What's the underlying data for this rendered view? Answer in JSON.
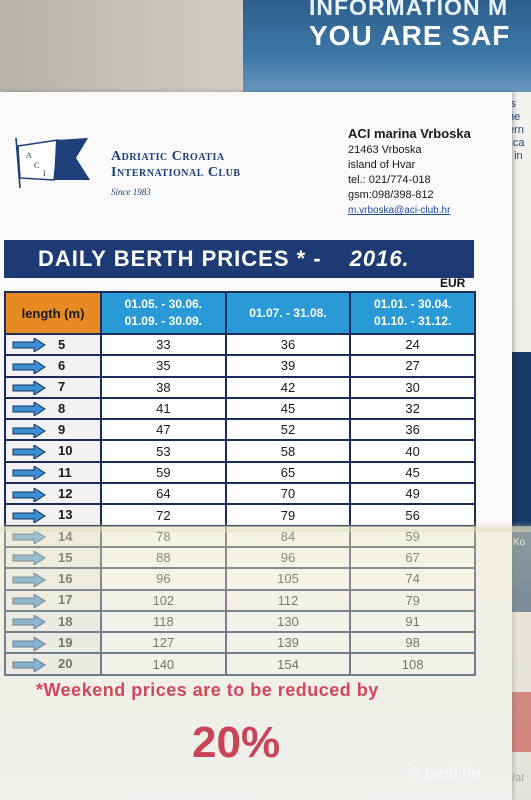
{
  "poster": {
    "line1": "INFORMATION M",
    "line2": "YOU ARE SAF",
    "edge_lines": [
      "is",
      "ne",
      "ern",
      "lica",
      "t in"
    ],
    "edge_ghost": "Ko",
    "edge_bottom": "/at"
  },
  "club": {
    "logo_letters": "A C I",
    "name_line1": "Adriatic Croatia",
    "name_line2": "International Club",
    "since": "Since 1983"
  },
  "address": {
    "title": "ACI marina Vrboska",
    "line1": "21463 Vrboska",
    "line2": "island of Hvar",
    "tel": "tel.: 021/774-018",
    "gsm": "gsm:098/398-812",
    "email": "m.vrboska@aci-club.hr"
  },
  "banner": {
    "title": "DAILY BERTH PRICES *  -",
    "year": "2016."
  },
  "currency": "EUR",
  "table": {
    "col_length": "length (m)",
    "seasons": [
      {
        "line1": "01.05. - 30.06.",
        "line2": "01.09. - 30.09."
      },
      {
        "line1": "01.07. - 31.08.",
        "line2": ""
      },
      {
        "line1": "01.01. - 30.04.",
        "line2": "01.10. - 31.12."
      }
    ],
    "rows": [
      {
        "length": "5",
        "p1": "33",
        "p2": "36",
        "p3": "24"
      },
      {
        "length": "6",
        "p1": "35",
        "p2": "39",
        "p3": "27"
      },
      {
        "length": "7",
        "p1": "38",
        "p2": "42",
        "p3": "30"
      },
      {
        "length": "8",
        "p1": "41",
        "p2": "45",
        "p3": "32"
      },
      {
        "length": "9",
        "p1": "47",
        "p2": "52",
        "p3": "36"
      },
      {
        "length": "10",
        "p1": "53",
        "p2": "58",
        "p3": "40"
      },
      {
        "length": "11",
        "p1": "59",
        "p2": "65",
        "p3": "45"
      },
      {
        "length": "12",
        "p1": "64",
        "p2": "70",
        "p3": "49"
      },
      {
        "length": "13",
        "p1": "72",
        "p2": "79",
        "p3": "56"
      },
      {
        "length": "14",
        "p1": "78",
        "p2": "84",
        "p3": "59"
      },
      {
        "length": "15",
        "p1": "88",
        "p2": "96",
        "p3": "67"
      },
      {
        "length": "16",
        "p1": "96",
        "p2": "105",
        "p3": "74"
      },
      {
        "length": "17",
        "p1": "102",
        "p2": "112",
        "p3": "79"
      },
      {
        "length": "18",
        "p1": "118",
        "p2": "130",
        "p3": "91"
      },
      {
        "length": "19",
        "p1": "127",
        "p2": "139",
        "p3": "98"
      },
      {
        "length": "20",
        "p1": "140",
        "p2": "154",
        "p3": "108"
      }
    ]
  },
  "note": "*Weekend prices are to  be reduced by",
  "discount": "20%",
  "watermark": "© tami.he",
  "colors": {
    "banner": "#1d3a74",
    "header_length": "#e88a24",
    "header_season": "#2a9ad7",
    "arrow": "#3a8fd0",
    "note": "#d2485a"
  }
}
